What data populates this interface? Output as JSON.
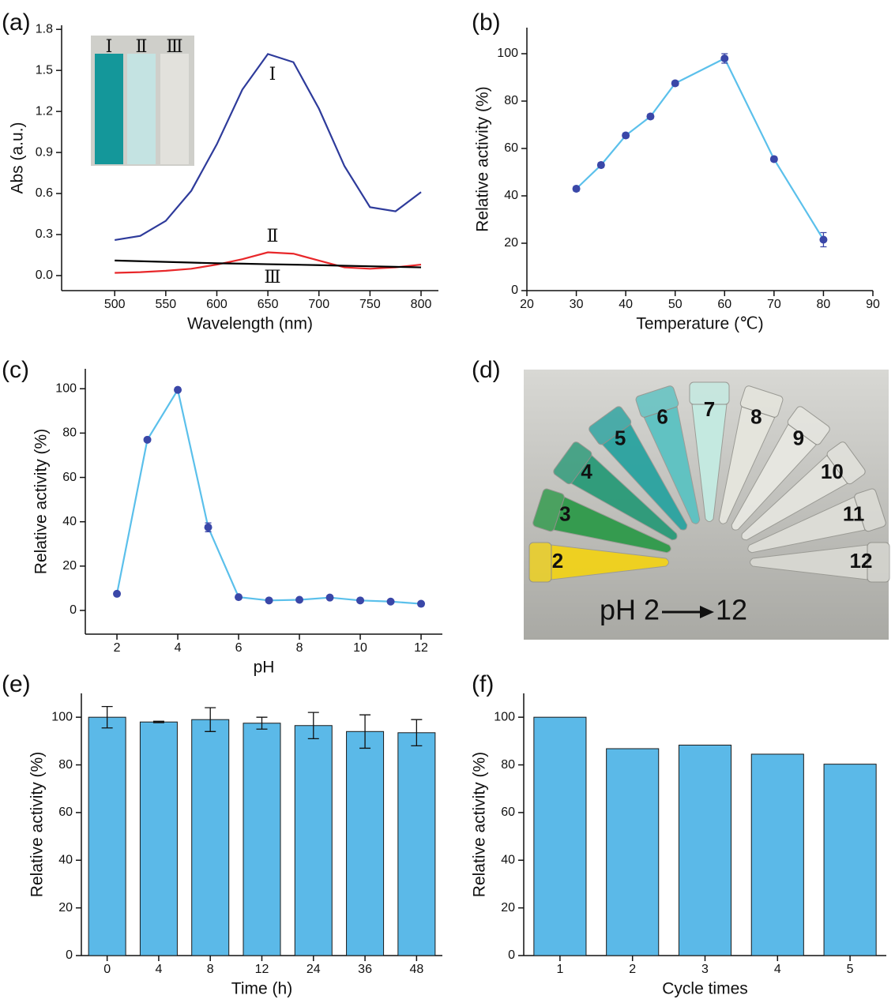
{
  "chart_data": [
    {
      "type": "line",
      "panel": "(a)",
      "xlabel": "Wavelength (nm)",
      "ylabel": "Abs (a.u.)",
      "x": [
        500,
        525,
        550,
        575,
        600,
        625,
        650,
        675,
        700,
        725,
        750,
        775,
        800
      ],
      "xlim": [
        448,
        817
      ],
      "xticks": [
        500,
        550,
        600,
        650,
        700,
        750,
        800
      ],
      "ylim": [
        -0.11,
        1.83
      ],
      "yticks": [
        {
          "value": 0,
          "label": "0.0"
        },
        0.3,
        0.6,
        0.9,
        1.2,
        1.5,
        1.8
      ],
      "series": [
        {
          "name": "Ⅰ",
          "color": "#2e3b9b",
          "values": [
            0.26,
            0.29,
            0.4,
            0.62,
            0.96,
            1.36,
            1.62,
            1.56,
            1.22,
            0.8,
            0.5,
            0.47,
            0.61
          ]
        },
        {
          "name": "Ⅱ",
          "color": "#e8272a",
          "values": [
            0.02,
            0.025,
            0.035,
            0.05,
            0.08,
            0.12,
            0.17,
            0.16,
            0.11,
            0.06,
            0.05,
            0.06,
            0.08
          ]
        },
        {
          "name": "Ⅲ",
          "color": "#000000",
          "values": [
            0.11,
            0.105,
            0.1,
            0.095,
            0.09,
            0.087,
            0.083,
            0.08,
            0.076,
            0.072,
            0.068,
            0.064,
            0.06
          ]
        }
      ]
    },
    {
      "type": "line",
      "panel": "(b)",
      "xlabel": "Temperature (℃)",
      "ylabel": "Relative activity (%)",
      "x": [
        30,
        35,
        40,
        45,
        50,
        60,
        70,
        80
      ],
      "xlim": [
        20,
        90
      ],
      "xticks": [
        20,
        30,
        40,
        50,
        60,
        70,
        80,
        90
      ],
      "ylim": [
        0,
        111
      ],
      "yticks": [
        0,
        20,
        40,
        60,
        80,
        100
      ],
      "series": [
        {
          "color": "#5bc0eb",
          "marker_color": "#3a47a8",
          "markers": true,
          "values": [
            43,
            53,
            65.5,
            73.5,
            87.5,
            98,
            55.5,
            21.5
          ],
          "errors": [
            1,
            1,
            1,
            1,
            1,
            2,
            1,
            3
          ]
        }
      ]
    },
    {
      "type": "line",
      "panel": "(c)",
      "xlabel": "pH",
      "ylabel": "Relative activity (%)",
      "x": [
        2,
        3,
        4,
        5,
        6,
        7,
        8,
        9,
        10,
        11,
        12
      ],
      "xlim": [
        0.96,
        12.7
      ],
      "xticks": [
        2,
        4,
        6,
        8,
        10,
        12
      ],
      "ylim": [
        -10.7,
        109
      ],
      "yticks": [
        0,
        20,
        40,
        60,
        80,
        100
      ],
      "series": [
        {
          "color": "#5bc0eb",
          "marker_color": "#3a47a8",
          "markers": true,
          "values": [
            7.5,
            77,
            99.5,
            37.5,
            6,
            4.5,
            4.8,
            5.8,
            4.5,
            4,
            3
          ],
          "errors": [
            0.5,
            0.5,
            0.5,
            2,
            0.5,
            0.5,
            0.3,
            0.5,
            0.5,
            0.5,
            0.5
          ]
        }
      ]
    },
    {
      "type": "bar",
      "panel": "(e)",
      "xlabel": "Time (h)",
      "ylabel": "Relative activity (%)",
      "categories": [
        "0",
        "4",
        "8",
        "12",
        "24",
        "36",
        "48"
      ],
      "values": [
        100,
        98,
        99,
        97.5,
        96.5,
        94,
        93.5
      ],
      "errors": [
        4.5,
        0.3,
        5,
        2.5,
        5.5,
        7,
        5.5
      ],
      "color": "#5bb9e8",
      "edge_color": "#1a1a1a",
      "ylim": [
        0,
        110
      ],
      "yticks": [
        0,
        20,
        40,
        60,
        80,
        100
      ]
    },
    {
      "type": "bar",
      "panel": "(f)",
      "xlabel": "Cycle times",
      "ylabel": "Relative activity (%)",
      "categories": [
        "1",
        "2",
        "3",
        "4",
        "5"
      ],
      "values": [
        100,
        86.8,
        88.3,
        84.5,
        80.3
      ],
      "color": "#5bb9e8",
      "edge_color": "#1a1a1a",
      "ylim": [
        0,
        110
      ],
      "yticks": [
        0,
        20,
        40,
        60,
        80,
        100
      ]
    }
  ],
  "photo": {
    "panel": "(d)",
    "tube_labels": [
      "2",
      "3",
      "4",
      "5",
      "6",
      "7",
      "8",
      "9",
      "10",
      "11",
      "12"
    ],
    "caption_start": "pH 2",
    "caption_end": "12"
  }
}
